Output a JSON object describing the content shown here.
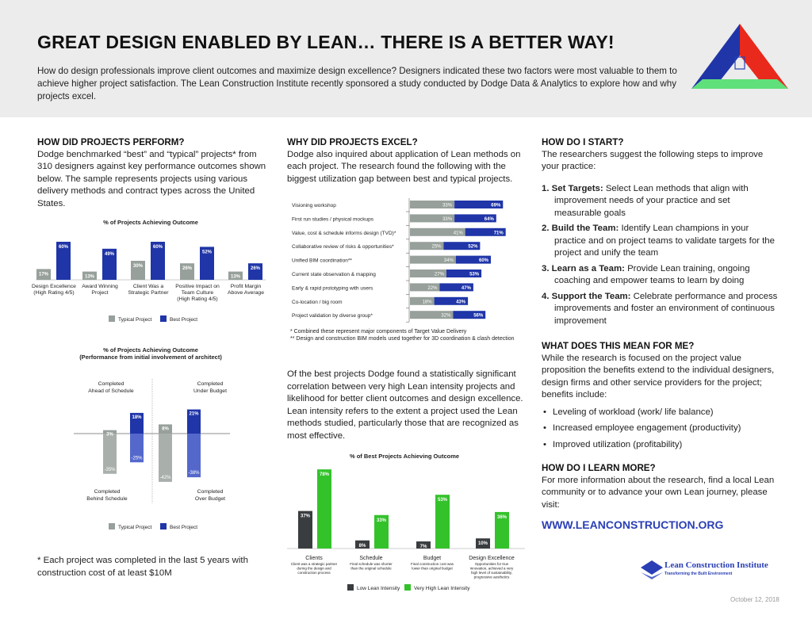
{
  "header": {
    "title": "GREAT DESIGN ENABLED BY LEAN… THERE IS A BETTER WAY!",
    "intro": "How do design professionals improve client outcomes and maximize design excellence? Designers indicated these two factors were most valuable to them to achieve higher project satisfaction. The Lean Construction Institute recently sponsored a study conducted by Dodge Data & Analytics to explore how and why projects excel.",
    "logo_text": "LCI Lean Construction Triangle"
  },
  "perform": {
    "heading": "HOW DID PROJECTS PERFORM?",
    "body": "Dodge benchmarked “best” and “typical” projects* from 310 designers against key performance outcomes shown below. The sample represents projects using various delivery methods and contract types across the United States."
  },
  "excel": {
    "heading": "WHY DID PROJECTS EXCEL?",
    "body": "Dodge also inquired about application of Lean methods on each project. The research found the following with the biggest utilization gap between best and typical projects.",
    "note1": "*  Combined these represent major components of Target Value Delivery",
    "note2": "** Design and construction BIM models used together for 3D coordination & clash detection",
    "body2": "Of the best projects Dodge found a statistically significant correlation between very high Lean intensity projects and likelihood for better client outcomes and design excellence. Lean intensity refers to the extent a project used the Lean methods studied, particularly those that are recognized as most effective."
  },
  "start": {
    "heading": "HOW DO I START?",
    "body": "The researchers suggest the following steps to improve your practice:",
    "steps": [
      {
        "n": "1.",
        "b": "Set Targets:",
        "t": "Select Lean methods that align with improvement needs of your practice and set measurable goals"
      },
      {
        "n": "2.",
        "b": "Build the Team:",
        "t": "Identify Lean champions in your practice and on project teams to validate targets for the project and unify the team"
      },
      {
        "n": "3.",
        "b": "Learn as a Team:",
        "t": "Provide Lean training, ongoing coaching and empower teams to learn by doing"
      },
      {
        "n": "4.",
        "b": "Support the Team:",
        "t": "Celebrate performance and process improvements and foster an environment of continuous improvement"
      }
    ]
  },
  "mean": {
    "heading": "WHAT DOES THIS MEAN FOR ME?",
    "body": "While the research is focused on the project value proposition the benefits extend to the individual designers, design firms and other service providers for the project; benefits include:",
    "bullets": [
      "Leveling of workload (work/ life balance)",
      "Increased employee engagement (productivity)",
      "Improved utilization (profitability)"
    ]
  },
  "learn": {
    "heading": "HOW DO I LEARN MORE?",
    "body": "For more information about the research, find a local Lean community or to advance your own Lean journey, please visit:",
    "url": "WWW.LEANCONSTRUCTION.ORG"
  },
  "footnote": "* Each project was completed in the last 5 years with construction cost of at least $10M",
  "footer": {
    "org": "Lean Construction Institute",
    "tagline": "Transforming the Built Environment",
    "date": "October 12, 2018"
  },
  "colors": {
    "typical": "#97a09a",
    "best": "#1f35a8",
    "best_light": "#5468cc",
    "low": "#3a3d3f",
    "high": "#34c22b",
    "accent": "#2a3fb5"
  },
  "chart_data": [
    {
      "type": "bar",
      "title": "% of Projects Achieving Outcome",
      "categories": [
        "Design Excellence (High Rating 4/5)",
        "Award Winning Project",
        "Client Was a Strategic Partner",
        "Positive Impact on Team Culture (High Rating 4/5)",
        "Profit Margin Above Average"
      ],
      "series": [
        {
          "name": "Typical Project",
          "values": [
            17,
            13,
            30,
            26,
            13
          ]
        },
        {
          "name": "Best Project",
          "values": [
            60,
            49,
            60,
            52,
            26
          ]
        }
      ],
      "legend": "bottom"
    },
    {
      "type": "bar",
      "orientation": "horizontal",
      "categories": [
        "Visioning workshop",
        "First run studies / physical mockups",
        "Value, cost & schedule informs design (TVD)*",
        "Collaborative review of risks & opportunities*",
        "Unified BIM coordination**",
        "Current state observation & mapping",
        "Early & rapid prototyping with users",
        "Co-location / big room",
        "Project validation by diverse group*"
      ],
      "series": [
        {
          "name": "Typical Project",
          "values": [
            33,
            33,
            41,
            25,
            34,
            27,
            22,
            18,
            32
          ]
        },
        {
          "name": "Best Project",
          "values": [
            69,
            64,
            71,
            52,
            60,
            53,
            47,
            43,
            56
          ]
        }
      ]
    },
    {
      "type": "bar",
      "title": "% of Projects Achieving Outcome",
      "subtitle": "(Performance from initial involvement of architect)",
      "quadrant_labels": [
        "Completed Ahead of Schedule",
        "Completed Under Budget",
        "Completed Behind Schedule",
        "Completed Over Budget"
      ],
      "categories": [
        "Schedule",
        "Budget"
      ],
      "series": [
        {
          "name": "Typical Project",
          "positive": [
            3,
            8
          ],
          "negative": [
            -35,
            -42
          ]
        },
        {
          "name": "Best Project",
          "positive": [
            18,
            21
          ],
          "negative": [
            -25,
            -38
          ]
        }
      ],
      "legend": "bottom"
    },
    {
      "type": "bar",
      "title": "% of Best Projects Achieving Outcome",
      "categories": [
        "Clients",
        "Schedule",
        "Budget",
        "Design Excellence"
      ],
      "category_notes": [
        "Client was a strategic partner during the design and construction process",
        "Final schedule was shorter than the original schedule",
        "Final construction cost was lower than original budget",
        "Opportunities for true innovation, achieved a very high level of sustainability, progressive aesthetics"
      ],
      "series": [
        {
          "name": "Low Lean Intensity",
          "values": [
            37,
            8,
            7,
            10
          ]
        },
        {
          "name": "Very High Lean Intensity",
          "values": [
            78,
            33,
            53,
            36
          ]
        }
      ],
      "legend": "bottom"
    }
  ]
}
